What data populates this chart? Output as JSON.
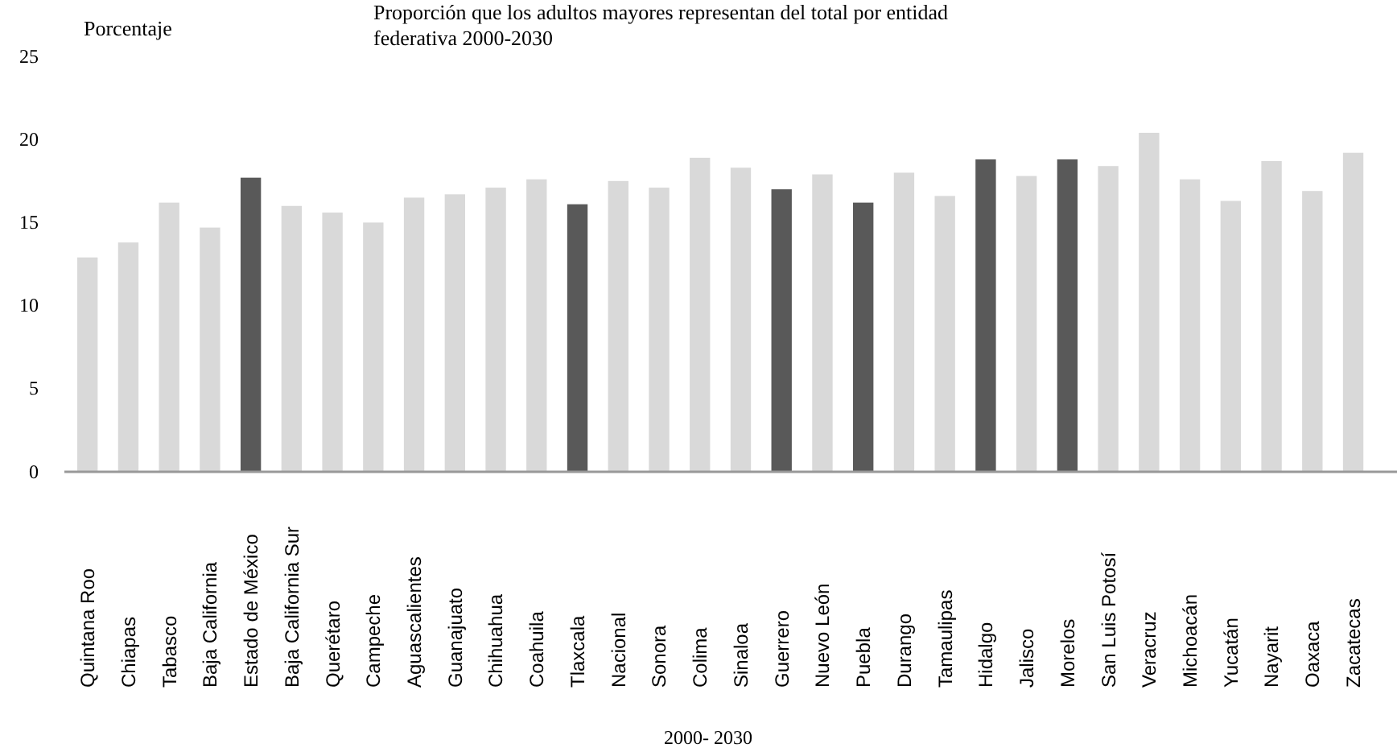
{
  "chart_data": {
    "type": "bar",
    "title": "Proporción que los adultos mayores representan del total por entidad federativa 2000-2030",
    "ylabel": "Porcentaje",
    "xlabel": "2000- 2030",
    "categories": [
      "Quintana Roo",
      "Chiapas",
      "Tabasco",
      "Baja California",
      "Estado de México",
      "Baja California Sur",
      "Querétaro",
      "Campeche",
      "Aguascalientes",
      "Guanajuato",
      "Chihuahua",
      "Coahuila",
      "Tlaxcala",
      "Nacional",
      "Sonora",
      "Colima",
      "Sinaloa",
      "Guerrero",
      "Nuevo León",
      "Puebla",
      "Durango",
      "Tamaulipas",
      "Hidalgo",
      "Jalisco",
      "Morelos",
      "San Luis Potosí",
      "Veracruz",
      "Michoacán",
      "Yucatán",
      "Nayarit",
      "Oaxaca",
      "Zacatecas"
    ],
    "values": [
      12.9,
      13.8,
      16.2,
      14.7,
      17.7,
      16.0,
      15.6,
      15.0,
      16.5,
      16.7,
      17.1,
      17.6,
      16.1,
      17.5,
      17.1,
      18.9,
      18.3,
      17.0,
      17.9,
      16.2,
      18.0,
      16.6,
      18.8,
      17.8,
      18.8,
      18.4,
      20.4,
      17.6,
      16.3,
      18.7,
      16.9,
      19.2
    ],
    "colors": [
      "#d9d9d9",
      "#d9d9d9",
      "#d9d9d9",
      "#d9d9d9",
      "#595959",
      "#d9d9d9",
      "#d9d9d9",
      "#d9d9d9",
      "#d9d9d9",
      "#d9d9d9",
      "#d9d9d9",
      "#d9d9d9",
      "#595959",
      "#d9d9d9",
      "#d9d9d9",
      "#d9d9d9",
      "#d9d9d9",
      "#595959",
      "#d9d9d9",
      "#595959",
      "#d9d9d9",
      "#d9d9d9",
      "#595959",
      "#d9d9d9",
      "#595959",
      "#d9d9d9",
      "#d9d9d9",
      "#d9d9d9",
      "#d9d9d9",
      "#d9d9d9",
      "#d9d9d9",
      "#d9d9d9"
    ],
    "ylim": [
      0,
      25
    ],
    "yticks": [
      0,
      5,
      10,
      15,
      20,
      25
    ],
    "grid": false
  }
}
